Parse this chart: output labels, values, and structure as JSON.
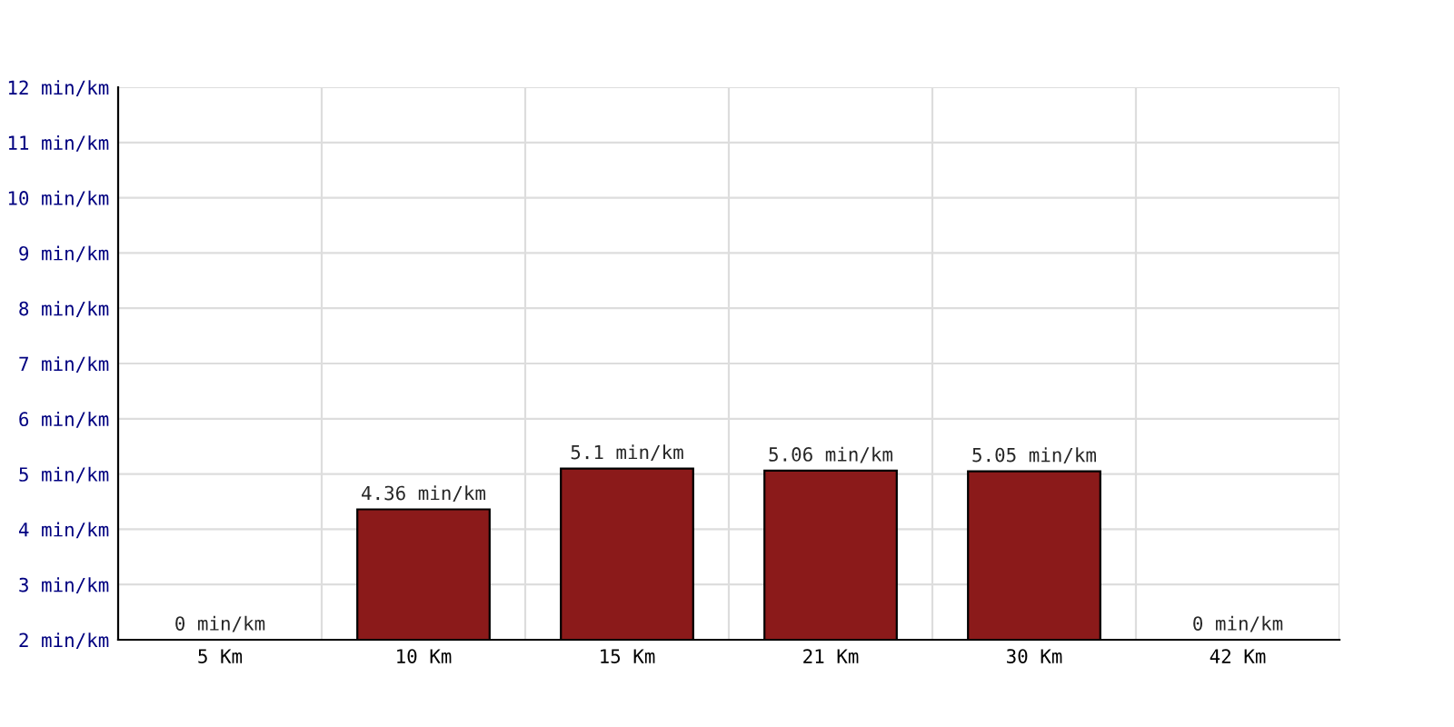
{
  "chart_data": {
    "type": "bar",
    "categories": [
      "5 Km",
      "10 Km",
      "15 Km",
      "21 Km",
      "30 Km",
      "42 Km"
    ],
    "values": [
      null,
      4.36,
      5.1,
      5.06,
      5.05,
      null
    ],
    "value_labels": [
      "0 min/km",
      "4.36 min/km",
      "5.1 min/km",
      "5.06 min/km",
      "5.05 min/km",
      "0 min/km"
    ],
    "color": "#8b1a1a",
    "ylim": [
      2,
      12
    ],
    "yticks": [
      {
        "value": 2,
        "label": "2 min/km"
      },
      {
        "value": 3,
        "label": "3 min/km"
      },
      {
        "value": 4,
        "label": "4 min/km"
      },
      {
        "value": 5,
        "label": "5 min/km"
      },
      {
        "value": 6,
        "label": "6 min/km"
      },
      {
        "value": 7,
        "label": "7 min/km"
      },
      {
        "value": 8,
        "label": "8 min/km"
      },
      {
        "value": 9,
        "label": "9 min/km"
      },
      {
        "value": 10,
        "label": "10 min/km"
      },
      {
        "value": 11,
        "label": "11 min/km"
      },
      {
        "value": 12,
        "label": "12 min/km"
      }
    ],
    "grid": true
  }
}
